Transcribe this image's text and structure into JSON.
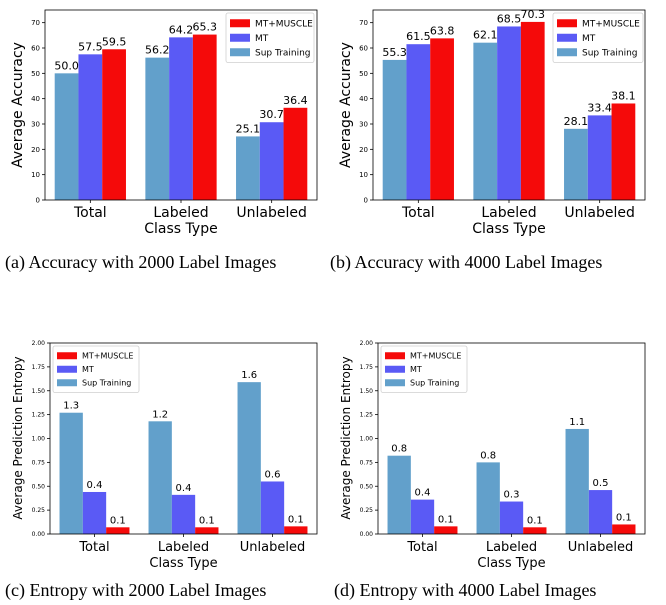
{
  "chart_data": [
    {
      "type": "bar",
      "caption": "(a) Accuracy with 2000 Label Images",
      "categories": [
        "Total",
        "Labeled",
        "Unlabeled"
      ],
      "xlabel": "Class Type",
      "ylabel": "Average Accuracy",
      "ylim": [
        0,
        75
      ],
      "yticks": [
        "0",
        "10",
        "20",
        "30",
        "40",
        "50",
        "60",
        "70"
      ],
      "legend": "top-right",
      "series": [
        {
          "name": "Sup Training",
          "color": "#62a0cb",
          "values": [
            50.0,
            56.2,
            25.1
          ],
          "labels": [
            "50.0",
            "56.2",
            "25.1"
          ]
        },
        {
          "name": "MT",
          "color": "#5a5af5",
          "values": [
            57.5,
            64.2,
            30.7
          ],
          "labels": [
            "57.5",
            "64.2",
            "30.7"
          ]
        },
        {
          "name": "MT+MUSCLE",
          "color": "#f50a0a",
          "values": [
            59.5,
            65.3,
            36.4
          ],
          "labels": [
            "59.5",
            "65.3",
            "36.4"
          ]
        }
      ]
    },
    {
      "type": "bar",
      "caption": "(b) Accuracy with 4000 Label Images",
      "categories": [
        "Total",
        "Labeled",
        "Unlabeled"
      ],
      "xlabel": "Class Type",
      "ylabel": "Average Accuracy",
      "ylim": [
        0,
        75
      ],
      "yticks": [
        "0",
        "10",
        "20",
        "30",
        "40",
        "50",
        "60",
        "70"
      ],
      "legend": "top-right",
      "series": [
        {
          "name": "Sup Training",
          "color": "#62a0cb",
          "values": [
            55.3,
            62.1,
            28.1
          ],
          "labels": [
            "55.3",
            "62.1",
            "28.1"
          ]
        },
        {
          "name": "MT",
          "color": "#5a5af5",
          "values": [
            61.5,
            68.5,
            33.4
          ],
          "labels": [
            "61.5",
            "68.5",
            "33.4"
          ]
        },
        {
          "name": "MT+MUSCLE",
          "color": "#f50a0a",
          "values": [
            63.8,
            70.3,
            38.1
          ],
          "labels": [
            "63.8",
            "70.3",
            "38.1"
          ]
        }
      ]
    },
    {
      "type": "bar",
      "caption": "(c) Entropy with 2000 Label Images",
      "categories": [
        "Total",
        "Labeled",
        "Unlabeled"
      ],
      "xlabel": "Class Type",
      "ylabel": "Average Prediction Entropy",
      "ylim": [
        0,
        2.0
      ],
      "yticks": [
        "0.00",
        "0.25",
        "0.50",
        "0.75",
        "1.00",
        "1.25",
        "1.50",
        "1.75",
        "2.00"
      ],
      "legend": "top-left",
      "series": [
        {
          "name": "Sup Training",
          "color": "#62a0cb",
          "values": [
            1.27,
            1.18,
            1.59
          ],
          "labels": [
            "1.3",
            "1.2",
            "1.6"
          ]
        },
        {
          "name": "MT",
          "color": "#5a5af5",
          "values": [
            0.44,
            0.41,
            0.55
          ],
          "labels": [
            "0.4",
            "0.4",
            "0.6"
          ]
        },
        {
          "name": "MT+MUSCLE",
          "color": "#f50a0a",
          "values": [
            0.07,
            0.07,
            0.08
          ],
          "labels": [
            "0.1",
            "0.1",
            "0.1"
          ]
        }
      ]
    },
    {
      "type": "bar",
      "caption": "(d) Entropy with 4000 Label Images",
      "categories": [
        "Total",
        "Labeled",
        "Unlabeled"
      ],
      "xlabel": "Class Type",
      "ylabel": "Average Prediction Entropy",
      "ylim": [
        0,
        2.0
      ],
      "yticks": [
        "0.00",
        "0.25",
        "0.50",
        "0.75",
        "1.00",
        "1.25",
        "1.50",
        "1.75",
        "2.00"
      ],
      "legend": "top-left",
      "series": [
        {
          "name": "Sup Training",
          "color": "#62a0cb",
          "values": [
            0.82,
            0.75,
            1.1
          ],
          "labels": [
            "0.8",
            "0.8",
            "1.1"
          ]
        },
        {
          "name": "MT",
          "color": "#5a5af5",
          "values": [
            0.36,
            0.34,
            0.46
          ],
          "labels": [
            "0.4",
            "0.3",
            "0.5"
          ]
        },
        {
          "name": "MT+MUSCLE",
          "color": "#f50a0a",
          "values": [
            0.08,
            0.07,
            0.1
          ],
          "labels": [
            "0.1",
            "0.1",
            "0.1"
          ]
        }
      ]
    }
  ]
}
